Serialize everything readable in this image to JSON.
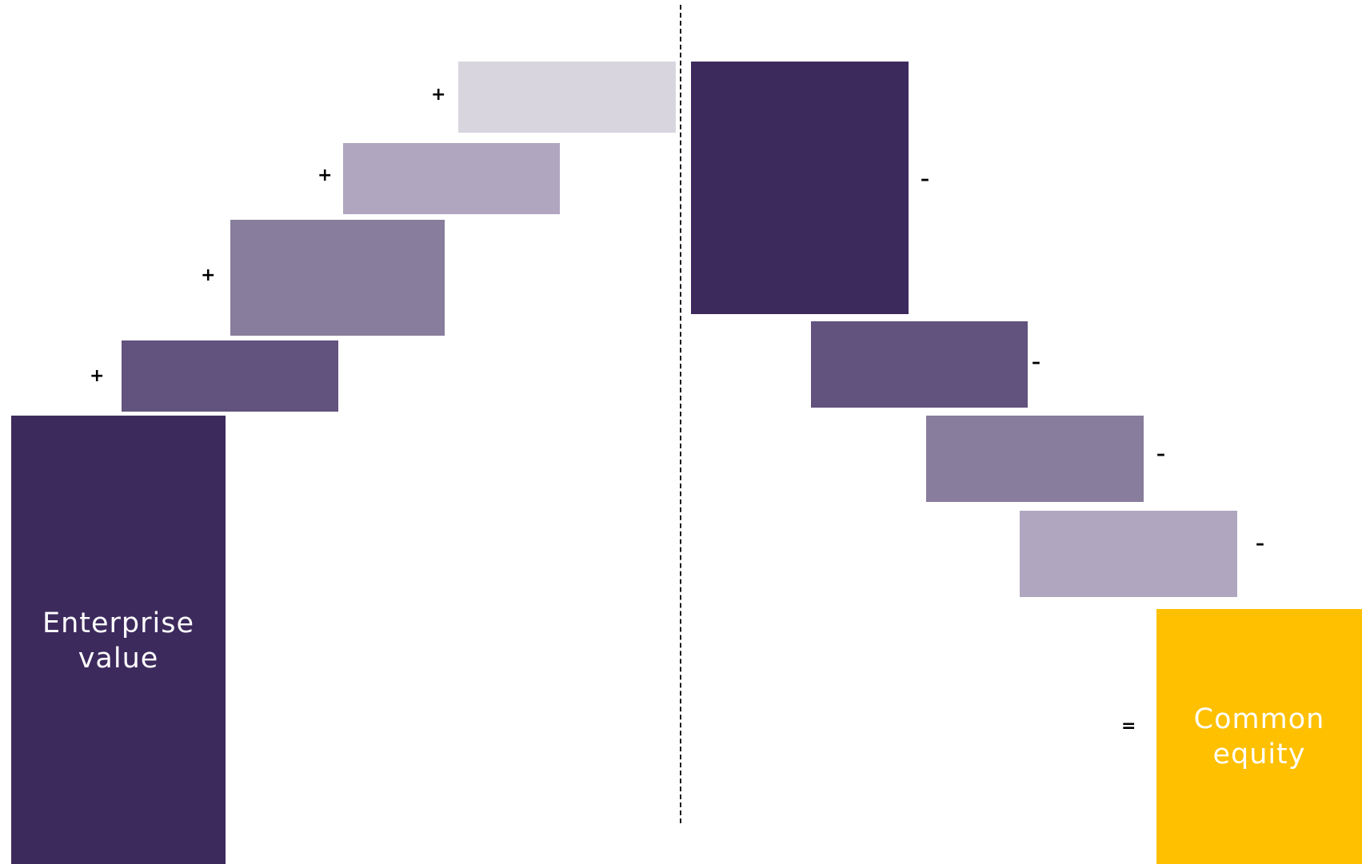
{
  "colors": {
    "dark_purple": "#3d2a5d",
    "medium_purple": "#62527e",
    "muted_purple": "#887d9c",
    "light_purple": "#b0a6bf",
    "pale_purple": "#d8d5df",
    "gold": "#ffc000"
  },
  "signs": {
    "plus": "+",
    "minus": "–",
    "equals": "="
  },
  "blocks": {
    "enterprise_value": {
      "line1": "Enterprise",
      "line2": "value"
    },
    "common_equity": {
      "line1": "Common",
      "line2": "equity"
    }
  }
}
